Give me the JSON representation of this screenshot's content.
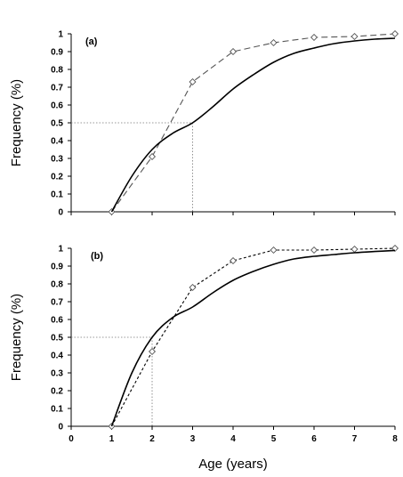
{
  "chart_data": [
    {
      "type": "line",
      "panel_label": "(a)",
      "ylabel": "Frequency (%)",
      "xlabel": "",
      "xlim": [
        0,
        8
      ],
      "ylim": [
        0,
        1
      ],
      "x_ticks_shown": false,
      "y_ticks": [
        0,
        0.1,
        0.2,
        0.3,
        0.4,
        0.5,
        0.6,
        0.7,
        0.8,
        0.9,
        1
      ],
      "grid": false,
      "series": [
        {
          "style": "dashed-with-diamond-markers",
          "color": "#555555",
          "x": [
            1,
            2,
            3,
            4,
            5,
            6,
            7,
            8
          ],
          "y": [
            0,
            0.31,
            0.73,
            0.9,
            0.95,
            0.98,
            0.985,
            1.0
          ]
        },
        {
          "style": "solid-smooth",
          "color": "#000000",
          "x": [
            1,
            1.5,
            2,
            2.5,
            3,
            3.5,
            4,
            4.5,
            5,
            5.5,
            6,
            6.5,
            7,
            7.5,
            8
          ],
          "y": [
            0,
            0.2,
            0.35,
            0.44,
            0.5,
            0.59,
            0.69,
            0.77,
            0.84,
            0.89,
            0.92,
            0.945,
            0.96,
            0.97,
            0.975
          ]
        }
      ],
      "reference_lines": {
        "y": 0.5,
        "x": 3,
        "style": "dotted"
      }
    },
    {
      "type": "line",
      "panel_label": "(b)",
      "ylabel": "Frequency (%)",
      "xlabel": "Age (years)",
      "xlim": [
        0,
        8
      ],
      "ylim": [
        0,
        1
      ],
      "x_ticks": [
        0,
        1,
        2,
        3,
        4,
        5,
        6,
        7,
        8
      ],
      "y_ticks": [
        0,
        0.1,
        0.2,
        0.3,
        0.4,
        0.5,
        0.6,
        0.7,
        0.8,
        0.9,
        1
      ],
      "grid": false,
      "series": [
        {
          "style": "dotted-with-diamond-markers",
          "color": "#000000",
          "x": [
            1,
            2,
            3,
            4,
            5,
            6,
            7,
            8
          ],
          "y": [
            0,
            0.42,
            0.78,
            0.93,
            0.99,
            0.99,
            0.995,
            1.0
          ]
        },
        {
          "style": "solid-smooth",
          "color": "#000000",
          "x": [
            1,
            1.5,
            2,
            2.5,
            3,
            3.5,
            4,
            4.5,
            5,
            5.5,
            6,
            6.5,
            7,
            7.5,
            8
          ],
          "y": [
            0,
            0.3,
            0.5,
            0.61,
            0.67,
            0.75,
            0.82,
            0.87,
            0.91,
            0.94,
            0.955,
            0.965,
            0.975,
            0.982,
            0.988
          ]
        }
      ],
      "reference_lines": {
        "y": 0.5,
        "x": 2,
        "style": "dotted"
      }
    }
  ]
}
